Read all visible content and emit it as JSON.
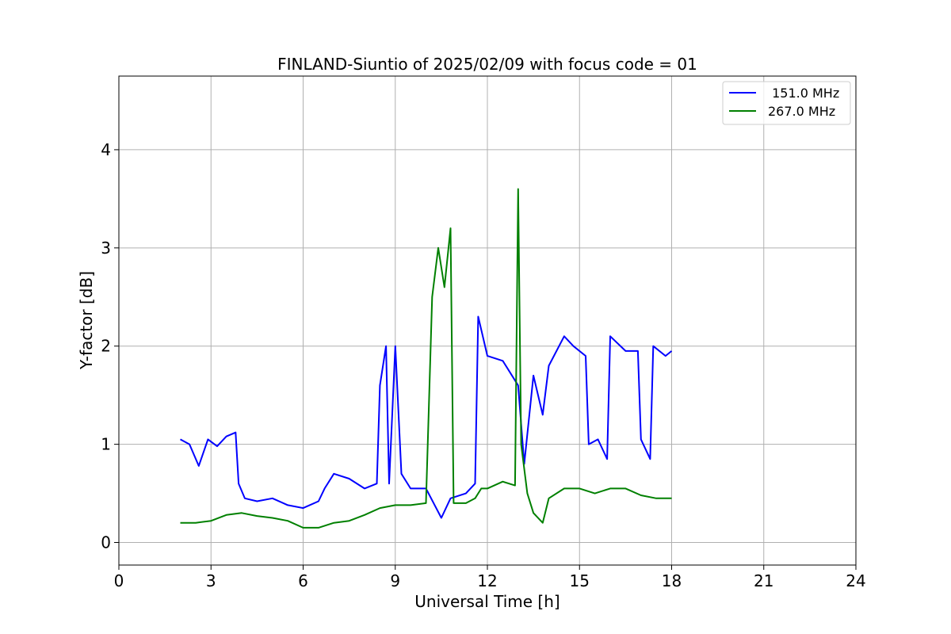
{
  "chart_data": {
    "type": "line",
    "title": "FINLAND-Siuntio of 2025/02/09 with focus code = 01",
    "xlabel": "Universal Time [h]",
    "ylabel": "Y-factor [dB]",
    "xlim": [
      0,
      24
    ],
    "ylim": [
      -0.23,
      4.75
    ],
    "xticks": [
      0,
      3,
      6,
      9,
      12,
      15,
      18,
      21,
      24
    ],
    "yticks": [
      0,
      1,
      2,
      3,
      4
    ],
    "grid": true,
    "legend_position": "top-right",
    "series": [
      {
        "name": " 151.0 MHz",
        "color": "#0000ff",
        "points": [
          [
            2.0,
            1.05
          ],
          [
            2.3,
            1.0
          ],
          [
            2.6,
            0.78
          ],
          [
            2.9,
            1.05
          ],
          [
            3.2,
            0.98
          ],
          [
            3.5,
            1.08
          ],
          [
            3.8,
            1.12
          ],
          [
            3.9,
            0.6
          ],
          [
            4.1,
            0.45
          ],
          [
            4.5,
            0.42
          ],
          [
            5.0,
            0.45
          ],
          [
            5.5,
            0.38
          ],
          [
            6.0,
            0.35
          ],
          [
            6.5,
            0.42
          ],
          [
            6.7,
            0.55
          ],
          [
            7.0,
            0.7
          ],
          [
            7.5,
            0.65
          ],
          [
            8.0,
            0.55
          ],
          [
            8.4,
            0.6
          ],
          [
            8.5,
            1.6
          ],
          [
            8.7,
            2.0
          ],
          [
            8.8,
            0.6
          ],
          [
            9.0,
            2.0
          ],
          [
            9.2,
            0.7
          ],
          [
            9.5,
            0.55
          ],
          [
            10.0,
            0.55
          ],
          [
            10.5,
            0.25
          ],
          [
            10.8,
            0.45
          ],
          [
            11.3,
            0.5
          ],
          [
            11.6,
            0.6
          ],
          [
            11.7,
            2.3
          ],
          [
            12.0,
            1.9
          ],
          [
            12.5,
            1.85
          ],
          [
            13.0,
            1.6
          ],
          [
            13.2,
            0.8
          ],
          [
            13.5,
            1.7
          ],
          [
            13.8,
            1.3
          ],
          [
            14.0,
            1.8
          ],
          [
            14.5,
            2.1
          ],
          [
            14.8,
            2.0
          ],
          [
            15.2,
            1.9
          ],
          [
            15.3,
            1.0
          ],
          [
            15.6,
            1.05
          ],
          [
            15.9,
            0.85
          ],
          [
            16.0,
            2.1
          ],
          [
            16.5,
            1.95
          ],
          [
            16.9,
            1.95
          ],
          [
            17.0,
            1.05
          ],
          [
            17.3,
            0.85
          ],
          [
            17.4,
            2.0
          ],
          [
            17.8,
            1.9
          ],
          [
            18.0,
            1.95
          ]
        ]
      },
      {
        "name": "267.0 MHz",
        "color": "#008000",
        "points": [
          [
            2.0,
            0.2
          ],
          [
            2.5,
            0.2
          ],
          [
            3.0,
            0.22
          ],
          [
            3.5,
            0.28
          ],
          [
            4.0,
            0.3
          ],
          [
            4.5,
            0.27
          ],
          [
            5.0,
            0.25
          ],
          [
            5.5,
            0.22
          ],
          [
            6.0,
            0.15
          ],
          [
            6.5,
            0.15
          ],
          [
            7.0,
            0.2
          ],
          [
            7.5,
            0.22
          ],
          [
            8.0,
            0.28
          ],
          [
            8.5,
            0.35
          ],
          [
            9.0,
            0.38
          ],
          [
            9.5,
            0.38
          ],
          [
            10.0,
            0.4
          ],
          [
            10.2,
            2.5
          ],
          [
            10.4,
            3.0
          ],
          [
            10.6,
            2.6
          ],
          [
            10.8,
            3.2
          ],
          [
            10.9,
            0.4
          ],
          [
            11.3,
            0.4
          ],
          [
            11.6,
            0.45
          ],
          [
            11.8,
            0.55
          ],
          [
            12.0,
            0.55
          ],
          [
            12.5,
            0.62
          ],
          [
            12.9,
            0.58
          ],
          [
            13.0,
            3.6
          ],
          [
            13.1,
            1.0
          ],
          [
            13.3,
            0.5
          ],
          [
            13.5,
            0.3
          ],
          [
            13.8,
            0.2
          ],
          [
            14.0,
            0.45
          ],
          [
            14.5,
            0.55
          ],
          [
            15.0,
            0.55
          ],
          [
            15.5,
            0.5
          ],
          [
            16.0,
            0.55
          ],
          [
            16.5,
            0.55
          ],
          [
            17.0,
            0.48
          ],
          [
            17.5,
            0.45
          ],
          [
            18.0,
            0.45
          ]
        ]
      }
    ]
  }
}
